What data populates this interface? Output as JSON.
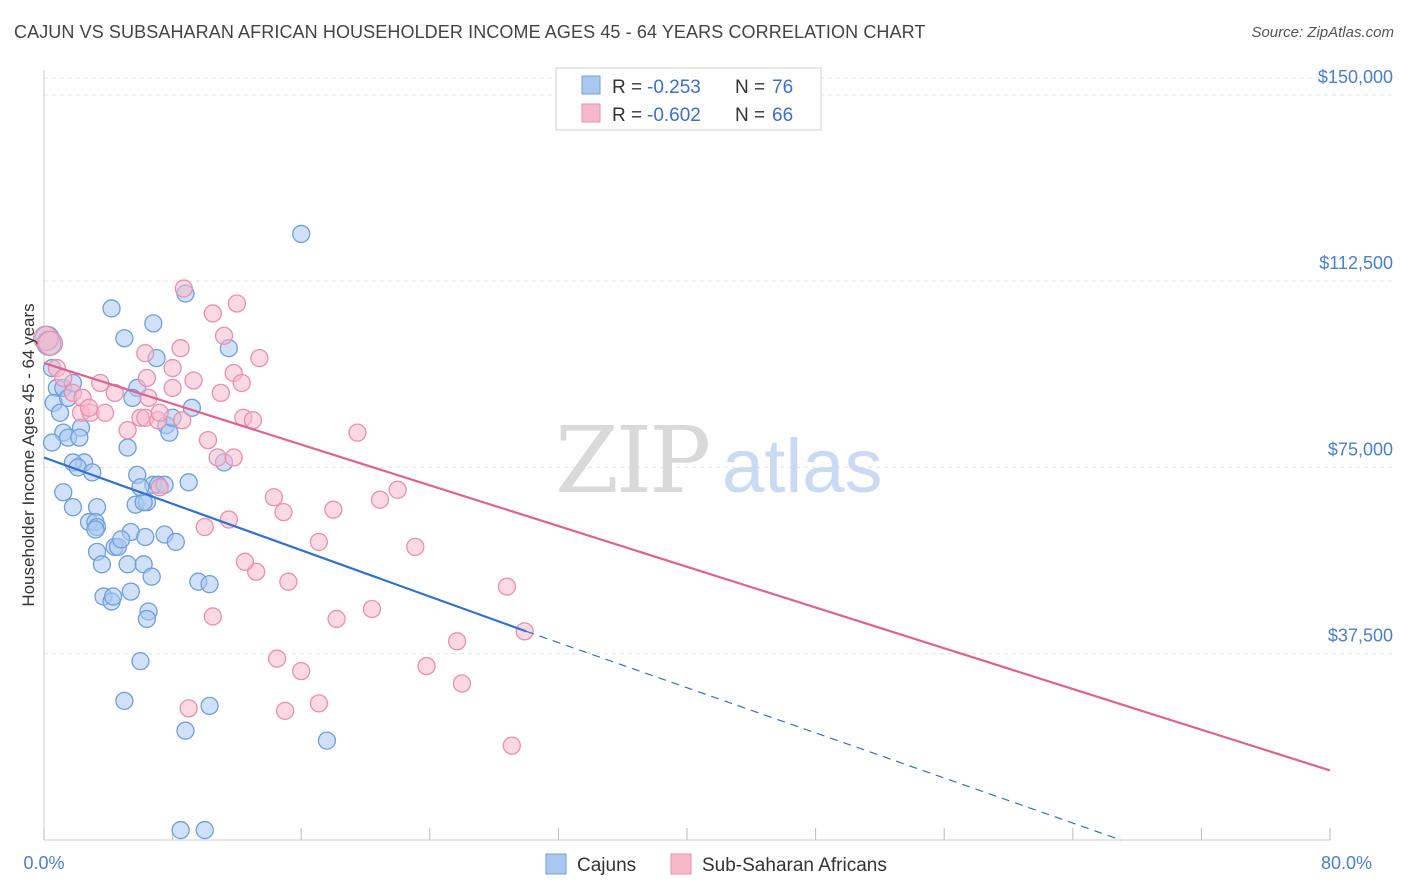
{
  "header": {
    "title": "CAJUN VS SUBSAHARAN AFRICAN HOUSEHOLDER INCOME AGES 45 - 64 YEARS CORRELATION CHART",
    "source": "Source: ZipAtlas.com"
  },
  "watermark": {
    "part1": "ZIP",
    "part2": "atlas"
  },
  "legend": {
    "r_label": "R =",
    "n_label": "N =",
    "rows": [
      {
        "r": "-0.253",
        "n": "76"
      },
      {
        "r": "-0.602",
        "n": "66"
      }
    ]
  },
  "colors": {
    "cajun_fill": "#a9c8f0",
    "cajun_stroke": "#6f9fdc",
    "cajun_line": "#2f72d0",
    "ssa_fill": "#f6b9cc",
    "ssa_stroke": "#ea8fae",
    "ssa_line": "#e0628f"
  },
  "chart_data": {
    "type": "scatter",
    "xlabel": "",
    "ylabel": "Householder Income Ages 45 - 64 years",
    "xlim": [
      0,
      80
    ],
    "ylim": [
      0,
      155000
    ],
    "x_tick_labels": [
      "0.0%",
      "80.0%"
    ],
    "y_ticks": [
      {
        "value": 37500,
        "label": "$37,500"
      },
      {
        "value": 75000,
        "label": "$75,000"
      },
      {
        "value": 112500,
        "label": "$112,500"
      },
      {
        "value": 150000,
        "label": "$150,000"
      }
    ],
    "grid": true,
    "legend_position": "bottom",
    "series": [
      {
        "name": "Cajuns",
        "points": [
          [
            0.2,
            101000
          ],
          [
            0.3,
            100000
          ],
          [
            0.5,
            95000
          ],
          [
            0.8,
            91000
          ],
          [
            1.2,
            91000
          ],
          [
            0.6,
            88000
          ],
          [
            1.5,
            89000
          ],
          [
            1.0,
            86000
          ],
          [
            2.3,
            83000
          ],
          [
            1.8,
            92000
          ],
          [
            1.2,
            82000
          ],
          [
            1.5,
            81000
          ],
          [
            2.2,
            81000
          ],
          [
            0.5,
            80000
          ],
          [
            2.5,
            76000
          ],
          [
            1.8,
            76000
          ],
          [
            2.1,
            75000
          ],
          [
            1.2,
            70000
          ],
          [
            3.3,
            67000
          ],
          [
            1.8,
            67000
          ],
          [
            2.8,
            64000
          ],
          [
            3.2,
            64000
          ],
          [
            3.3,
            63000
          ],
          [
            3.2,
            62500
          ],
          [
            4.4,
            59000
          ],
          [
            3.3,
            58000
          ],
          [
            4.6,
            59000
          ],
          [
            5.2,
            55500
          ],
          [
            3.6,
            55500
          ],
          [
            5.4,
            50000
          ],
          [
            3.7,
            49000
          ],
          [
            4.2,
            48000
          ],
          [
            4.3,
            49000
          ],
          [
            6.2,
            55500
          ],
          [
            6.7,
            53000
          ],
          [
            6.5,
            46000
          ],
          [
            6.4,
            44500
          ],
          [
            5.7,
            67500
          ],
          [
            6.8,
            71500
          ],
          [
            6.4,
            68000
          ],
          [
            7.1,
            71500
          ],
          [
            5.8,
            73500
          ],
          [
            6.2,
            68000
          ],
          [
            7.5,
            71500
          ],
          [
            7.5,
            61500
          ],
          [
            5.4,
            62000
          ],
          [
            6.3,
            61000
          ],
          [
            4.8,
            60500
          ],
          [
            5.2,
            79000
          ],
          [
            6.8,
            104000
          ],
          [
            8.8,
            110000
          ],
          [
            5.0,
            101000
          ],
          [
            4.2,
            107000
          ],
          [
            7.0,
            97000
          ],
          [
            5.8,
            91000
          ],
          [
            9.2,
            87000
          ],
          [
            7.6,
            83500
          ],
          [
            7.8,
            82000
          ],
          [
            9.0,
            72000
          ],
          [
            8.2,
            60000
          ],
          [
            9.6,
            52000
          ],
          [
            10.3,
            51500
          ],
          [
            11.5,
            99000
          ],
          [
            11.2,
            76000
          ],
          [
            16.0,
            122000
          ],
          [
            5.5,
            89000
          ],
          [
            6.0,
            36000
          ],
          [
            5.0,
            28000
          ],
          [
            8.8,
            22000
          ],
          [
            10.3,
            27000
          ],
          [
            17.6,
            20000
          ],
          [
            8.5,
            2000
          ],
          [
            10.0,
            2000
          ],
          [
            3.0,
            74000
          ],
          [
            6.0,
            71000
          ],
          [
            8.0,
            85000
          ]
        ]
      },
      {
        "name": "Sub-Saharan Africans",
        "points": [
          [
            0.1,
            101000
          ],
          [
            0.4,
            100000
          ],
          [
            0.8,
            95000
          ],
          [
            1.2,
            93000
          ],
          [
            1.8,
            90000
          ],
          [
            2.3,
            86000
          ],
          [
            2.4,
            89000
          ],
          [
            2.9,
            86000
          ],
          [
            3.5,
            92000
          ],
          [
            3.8,
            86000
          ],
          [
            2.8,
            87000
          ],
          [
            4.4,
            90000
          ],
          [
            5.2,
            82500
          ],
          [
            6.0,
            85000
          ],
          [
            6.5,
            89000
          ],
          [
            6.3,
            85000
          ],
          [
            7.1,
            84500
          ],
          [
            8.0,
            91000
          ],
          [
            7.2,
            86000
          ],
          [
            8.6,
            84500
          ],
          [
            8.0,
            95000
          ],
          [
            8.5,
            99000
          ],
          [
            9.3,
            92500
          ],
          [
            10.5,
            106000
          ],
          [
            11.0,
            90000
          ],
          [
            11.8,
            94000
          ],
          [
            12.4,
            85000
          ],
          [
            12.3,
            92000
          ],
          [
            13.4,
            97000
          ],
          [
            13.0,
            84500
          ],
          [
            12.0,
            108000
          ],
          [
            11.2,
            101500
          ],
          [
            8.7,
            111000
          ],
          [
            6.3,
            98000
          ],
          [
            6.4,
            93000
          ],
          [
            7.2,
            71000
          ],
          [
            10.2,
            80500
          ],
          [
            10.8,
            77000
          ],
          [
            11.8,
            77000
          ],
          [
            13.2,
            54000
          ],
          [
            14.3,
            69000
          ],
          [
            14.9,
            66000
          ],
          [
            15.2,
            52000
          ],
          [
            17.1,
            60000
          ],
          [
            18.0,
            66500
          ],
          [
            19.5,
            82000
          ],
          [
            20.9,
            68500
          ],
          [
            22.0,
            70500
          ],
          [
            23.1,
            59000
          ],
          [
            18.2,
            44500
          ],
          [
            25.7,
            40000
          ],
          [
            26.0,
            31500
          ],
          [
            29.9,
            42000
          ],
          [
            29.1,
            19000
          ],
          [
            28.8,
            51000
          ],
          [
            23.8,
            35000
          ],
          [
            20.4,
            46500
          ],
          [
            17.1,
            27500
          ],
          [
            15.0,
            26000
          ],
          [
            14.5,
            36500
          ],
          [
            10.0,
            63000
          ],
          [
            11.5,
            64500
          ],
          [
            16.0,
            34000
          ],
          [
            12.5,
            56000
          ],
          [
            9.0,
            26500
          ],
          [
            10.5,
            45000
          ]
        ]
      }
    ],
    "trend_lines": [
      {
        "series": "Cajuns",
        "solid": [
          [
            0,
            77000
          ],
          [
            30,
            42000
          ]
        ],
        "dashed": [
          [
            30,
            42000
          ],
          [
            67,
            0
          ]
        ]
      },
      {
        "series": "Sub-Saharan Africans",
        "solid": [
          [
            0,
            96000
          ],
          [
            80,
            14000
          ]
        ]
      }
    ]
  },
  "bottom_legend": [
    {
      "label": "Cajuns"
    },
    {
      "label": "Sub-Saharan Africans"
    }
  ]
}
